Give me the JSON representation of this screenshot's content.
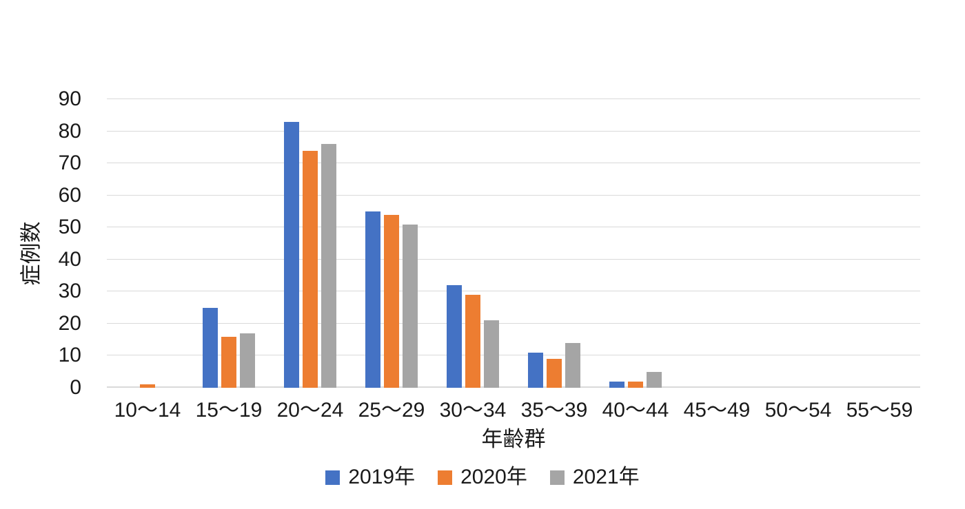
{
  "chart_data": {
    "type": "bar",
    "title": "",
    "categories": [
      "10〜14",
      "15〜19",
      "20〜24",
      "25〜29",
      "30〜34",
      "35〜39",
      "40〜44",
      "45〜49",
      "50〜54",
      "55〜59"
    ],
    "series": [
      {
        "name": "2019年",
        "color": "#4472C4",
        "values": [
          0,
          25,
          83,
          55,
          32,
          11,
          2,
          0,
          0,
          0
        ]
      },
      {
        "name": "2020年",
        "color": "#ED7D31",
        "values": [
          1,
          16,
          74,
          54,
          29,
          9,
          2,
          0,
          0,
          0
        ]
      },
      {
        "name": "2021年",
        "color": "#A5A5A5",
        "values": [
          0,
          17,
          76,
          51,
          21,
          14,
          5,
          0,
          0,
          0
        ]
      }
    ],
    "xlabel": "年齢群",
    "ylabel": "症例数",
    "ylim": [
      0,
      90
    ],
    "ytick_step": 10,
    "grid": true,
    "gridline_color": "#D9D9D9",
    "legend_position": "bottom",
    "background": "#FFFFFF"
  }
}
